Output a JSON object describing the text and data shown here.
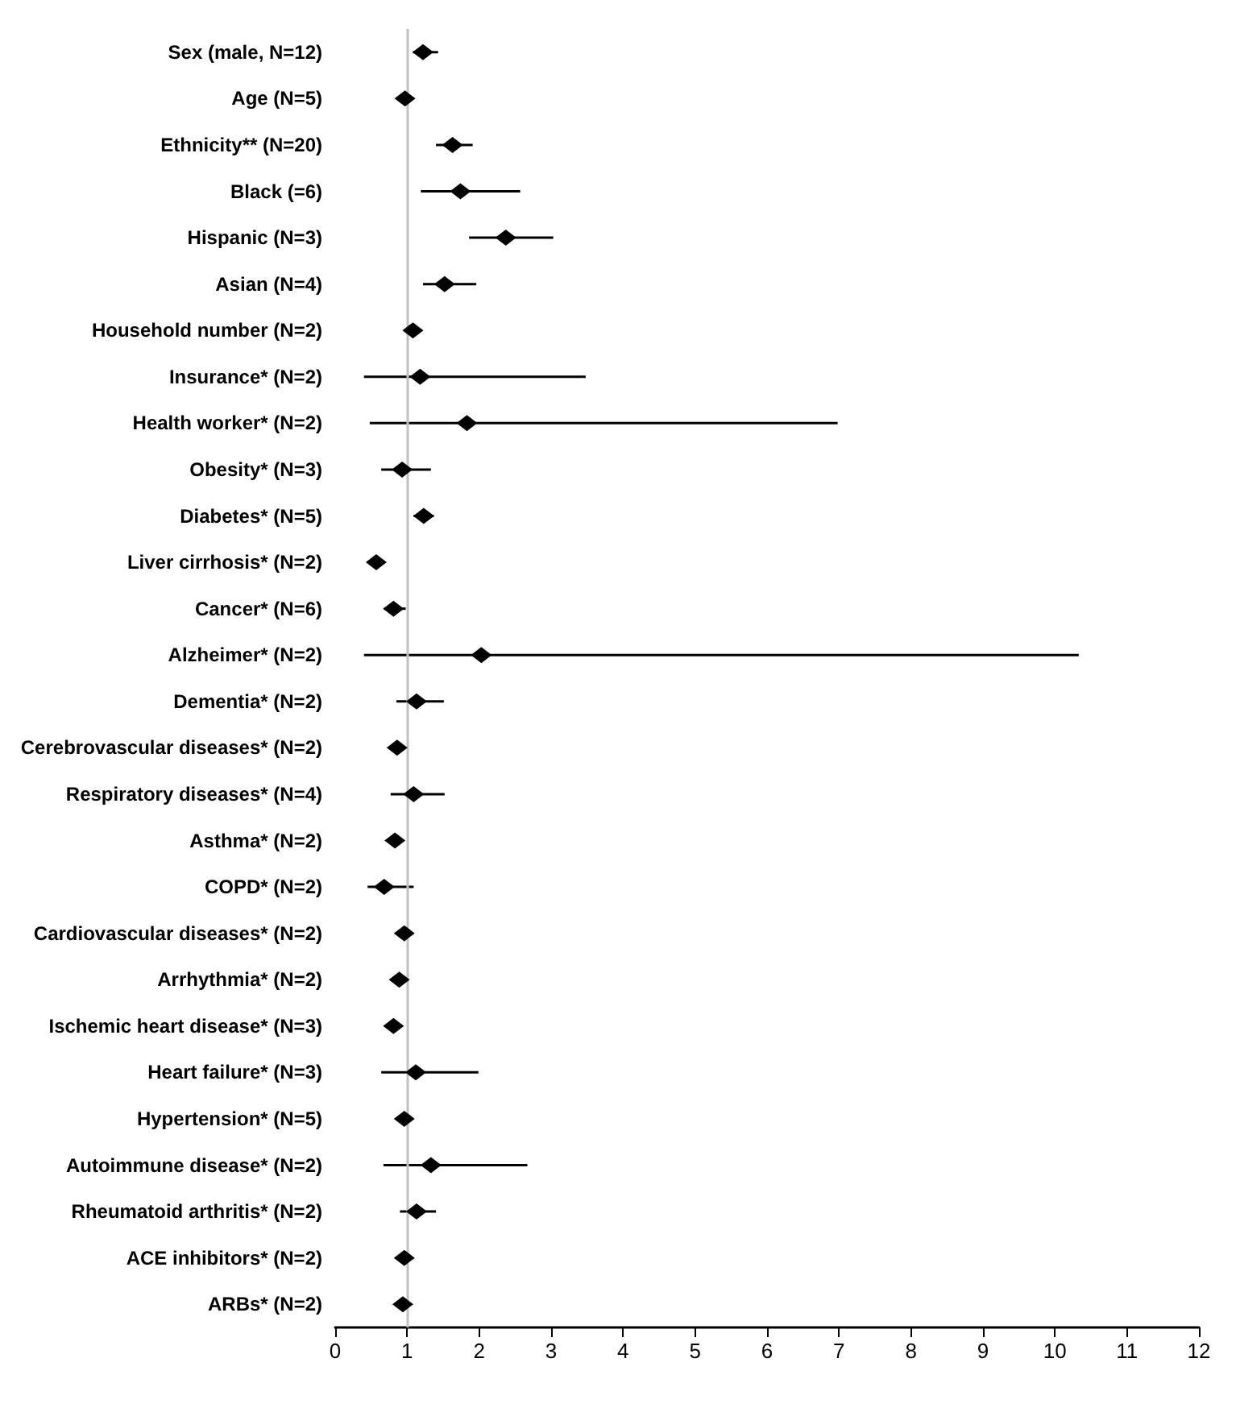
{
  "chart_data": {
    "type": "scatter",
    "orientation": "horizontal",
    "marker": "diamond",
    "categories": [
      "Sex (male, N=12)",
      "Age (N=5)",
      "Ethnicity** (N=20)",
      "Black (=6)",
      "Hispanic (N=3)",
      "Asian (N=4)",
      "Household number (N=2)",
      "Insurance* (N=2)",
      "Health worker* (N=2)",
      "Obesity* (N=3)",
      "Diabetes* (N=5)",
      "Liver cirrhosis* (N=2)",
      "Cancer* (N=6)",
      "Alzheimer* (N=2)",
      "Dementia* (N=2)",
      "Cerebrovascular diseases* (N=2)",
      "Respiratory diseases* (N=4)",
      "Asthma* (N=2)",
      "COPD* (N=2)",
      "Cardiovascular diseases* (N=2)",
      "Arrhythmia* (N=2)",
      "Ischemic heart disease* (N=3)",
      "Heart failure* (N=3)",
      "Hypertension* (N=5)",
      "Autoimmune disease* (N=2)",
      "Rheumatoid arthritis* (N=2)",
      "ACE inhibitors* (N=2)",
      "ARBs* (N=2)"
    ],
    "series": [
      {
        "color": "#000000",
        "values": [
          1.22,
          0.97,
          1.63,
          1.74,
          2.37,
          1.52,
          1.08,
          1.18,
          1.83,
          0.93,
          1.23,
          0.57,
          0.81,
          2.03,
          1.13,
          0.86,
          1.09,
          0.83,
          0.68,
          0.96,
          0.89,
          0.81,
          1.12,
          0.96,
          1.33,
          1.13,
          0.96,
          0.94
        ],
        "errors": [
          [
            1.08,
            1.43
          ],
          [
            0.93,
            1.05
          ],
          [
            1.4,
            1.91
          ],
          [
            1.19,
            2.57
          ],
          [
            1.86,
            3.03
          ],
          [
            1.22,
            1.96
          ],
          [
            1.02,
            1.14
          ],
          [
            0.4,
            3.48
          ],
          [
            0.48,
            6.98
          ],
          [
            0.64,
            1.33
          ],
          [
            1.09,
            1.37
          ],
          [
            0.52,
            0.63
          ],
          [
            0.68,
            0.98
          ],
          [
            0.4,
            10.33
          ],
          [
            0.85,
            1.51
          ],
          [
            0.8,
            0.92
          ],
          [
            0.77,
            1.52
          ],
          [
            0.78,
            0.89
          ],
          [
            0.45,
            1.09
          ],
          [
            0.92,
            1.02
          ],
          [
            0.85,
            0.94
          ],
          [
            0.77,
            0.86
          ],
          [
            0.64,
            1.99
          ],
          [
            0.92,
            1.02
          ],
          [
            0.67,
            2.67
          ],
          [
            0.9,
            1.4
          ],
          [
            0.92,
            1.02
          ],
          [
            0.9,
            1.0
          ]
        ]
      }
    ],
    "xlim": [
      0,
      12
    ],
    "xticks": [
      0,
      1,
      2,
      3,
      4,
      5,
      6,
      7,
      8,
      9,
      10,
      11,
      12
    ],
    "ref_lines": [
      {
        "axis": "x",
        "value": 1,
        "color": "#c0c0c0"
      }
    ]
  }
}
